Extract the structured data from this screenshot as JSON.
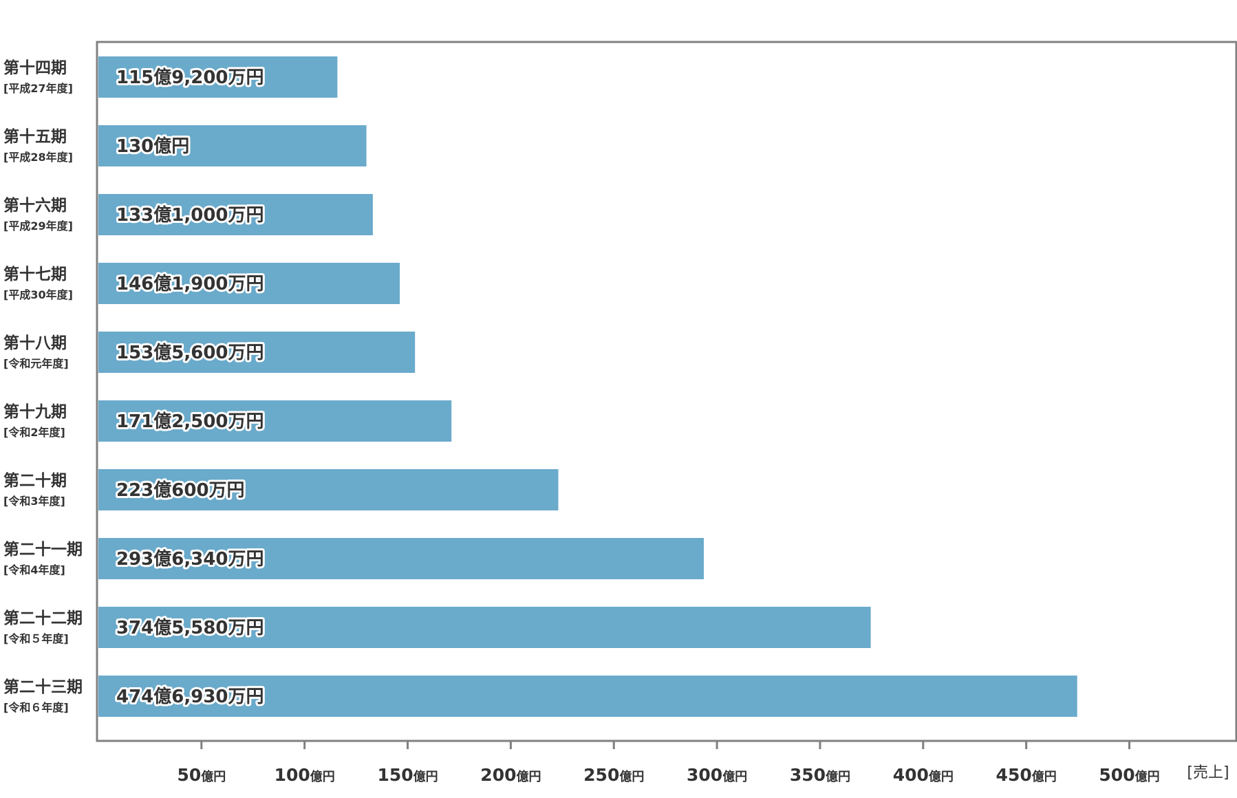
{
  "chart_data": {
    "type": "bar",
    "orientation": "horizontal",
    "categories": [
      {
        "name": "第十四期",
        "era": "[平成27年度]"
      },
      {
        "name": "第十五期",
        "era": "[平成28年度]"
      },
      {
        "name": "第十六期",
        "era": "[平成29年度]"
      },
      {
        "name": "第十七期",
        "era": "[平成30年度]"
      },
      {
        "name": "第十八期",
        "era": "[令和元年度]"
      },
      {
        "name": "第十九期",
        "era": "[令和2年度]"
      },
      {
        "name": "第二十期",
        "era": "[令和3年度]"
      },
      {
        "name": "第二十一期",
        "era": "[令和4年度]"
      },
      {
        "name": "第二十二期",
        "era": "[令和５年度]"
      },
      {
        "name": "第二十三期",
        "era": "[令和６年度]"
      }
    ],
    "values": [
      115.92,
      130,
      133.1,
      146.19,
      153.56,
      171.25,
      223.06,
      293.634,
      374.558,
      474.693
    ],
    "value_labels": [
      "115億9,200万円",
      "130億円",
      "133億1,000万円",
      "146億1,900万円",
      "153億5,600万円",
      "171億2,500万円",
      "223億600万円",
      "293億6,340万円",
      "374億5,580万円",
      "474億6,930万円"
    ],
    "x_ticks": [
      {
        "value": 50,
        "num": "50",
        "unit": "億円"
      },
      {
        "value": 100,
        "num": "100",
        "unit": "億円"
      },
      {
        "value": 150,
        "num": "150",
        "unit": "億円"
      },
      {
        "value": 200,
        "num": "200",
        "unit": "億円"
      },
      {
        "value": 250,
        "num": "250",
        "unit": "億円"
      },
      {
        "value": 300,
        "num": "300",
        "unit": "億円"
      },
      {
        "value": 350,
        "num": "350",
        "unit": "億円"
      },
      {
        "value": 400,
        "num": "400",
        "unit": "億円"
      },
      {
        "value": 450,
        "num": "450",
        "unit": "億円"
      },
      {
        "value": 500,
        "num": "500",
        "unit": "億円"
      }
    ],
    "xlabel": "[売上]",
    "xlim": [
      0,
      550
    ],
    "bar_color": "#6aaacb",
    "frame_color": "#808080",
    "grid": false
  }
}
